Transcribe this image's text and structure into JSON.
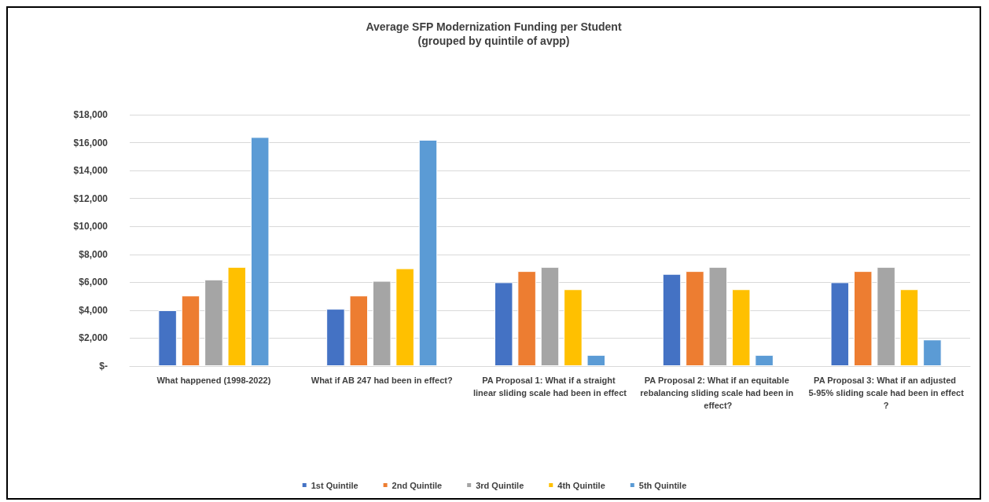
{
  "chart_data": {
    "type": "bar",
    "title": "Average SFP Modernization Funding per Student",
    "subtitle": "(grouped by quintile of avpp)",
    "categories": [
      "What happened (1998-2022)",
      "What if AB 247 had been in effect?",
      "PA Proposal 1: What if a straight linear sliding scale had been in effect",
      "PA Proposal 2: What if an equitable rebalancing sliding scale had been in effect?",
      "PA Proposal 3: What if an adjusted 5-95% sliding scale had been in effect?"
    ],
    "series": [
      {
        "name": "1st Quintile",
        "color": "#4472c4",
        "values": [
          4000,
          4100,
          6000,
          6600,
          6000
        ]
      },
      {
        "name": "2nd Quintile",
        "color": "#ed7d31",
        "values": [
          5050,
          5050,
          6800,
          6800,
          6800
        ]
      },
      {
        "name": "3rd Quintile",
        "color": "#a5a5a5",
        "values": [
          6200,
          6100,
          7100,
          7100,
          7100
        ]
      },
      {
        "name": "4th Quintile",
        "color": "#ffc000",
        "values": [
          7100,
          7000,
          5500,
          5500,
          5500
        ]
      },
      {
        "name": "5th Quintile",
        "color": "#5b9bd5",
        "values": [
          16400,
          16200,
          800,
          800,
          1900
        ]
      }
    ],
    "ylim": [
      0,
      18000
    ],
    "yticks": [
      {
        "value": 0,
        "label": "$-"
      },
      {
        "value": 2000,
        "label": "$2,000"
      },
      {
        "value": 4000,
        "label": "$4,000"
      },
      {
        "value": 6000,
        "label": "$6,000"
      },
      {
        "value": 8000,
        "label": "$8,000"
      },
      {
        "value": 10000,
        "label": "$10,000"
      },
      {
        "value": 12000,
        "label": "$12,000"
      },
      {
        "value": 14000,
        "label": "$14,000"
      },
      {
        "value": 16000,
        "label": "$16,000"
      },
      {
        "value": 18000,
        "label": "$18,000"
      }
    ],
    "grid": "y",
    "legend": "bottom"
  }
}
